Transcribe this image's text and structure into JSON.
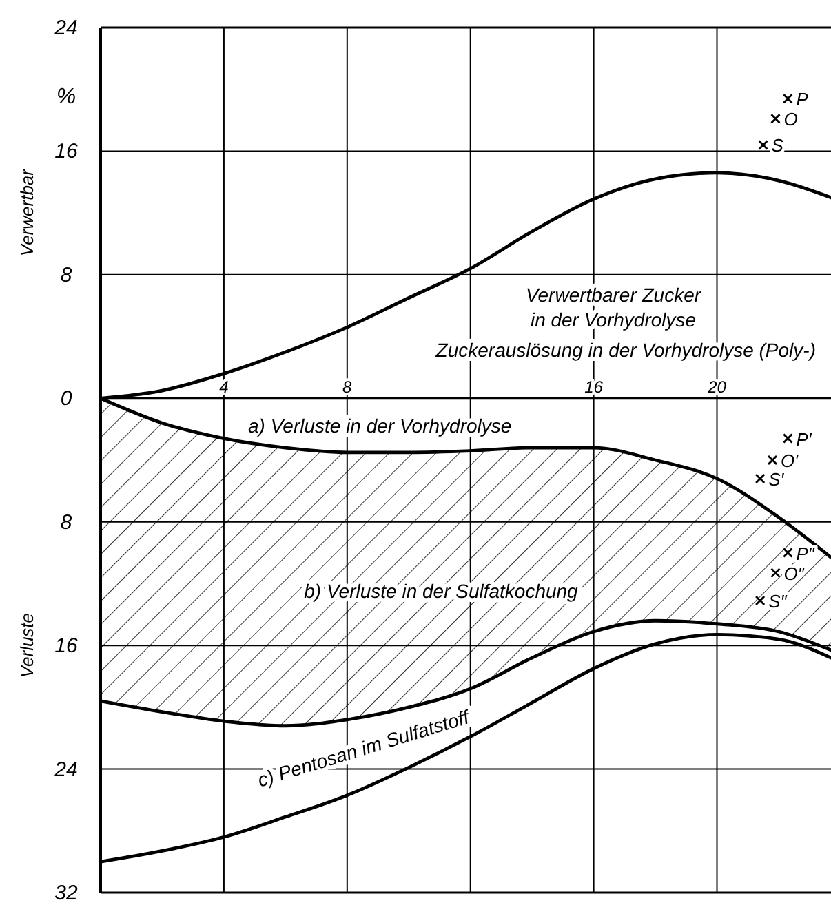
{
  "chart_data": {
    "type": "line",
    "xlabel": "Zuckerauslösung in der Vorhydrolyse (Poly-)",
    "ylabel": "Verwertbar",
    "annotations": [
      "Verluste",
      "%"
    ],
    "x": [
      0,
      2,
      4,
      6,
      8,
      10,
      12,
      14,
      16,
      18,
      20,
      22,
      23.7
    ],
    "xlim": [
      0,
      23.7
    ],
    "xticks": [
      4,
      8,
      {
        "value": 12,
        "label": null
      },
      16,
      20
    ],
    "ylim": [
      -32,
      24
    ],
    "yticks": [
      24,
      16,
      8,
      0,
      {
        "value": -8,
        "label": "8"
      },
      {
        "value": -16,
        "label": "16"
      },
      {
        "value": -24,
        "label": "24"
      },
      {
        "value": -32,
        "label": "32"
      }
    ],
    "grid": true,
    "legend": false,
    "line_style": "solid",
    "series": [
      {
        "name": "Verwertbarer Zucker in der Vorhydrolyse",
        "color": "#000000",
        "values": [
          0,
          0.5,
          1.6,
          3.0,
          4.6,
          6.5,
          8.4,
          10.8,
          12.9,
          14.2,
          14.6,
          14.1,
          13.0
        ]
      },
      {
        "name": "a) Verluste in der Vorhydrolyse",
        "color": "#000000",
        "values": [
          0,
          -1.6,
          -2.6,
          -3.2,
          -3.5,
          -3.5,
          -3.4,
          -3.2,
          -3.2,
          -4.0,
          -5.2,
          -7.7,
          -10.3
        ]
      },
      {
        "name": "b) Verluste in der Sulfatkochung",
        "color": "#000000",
        "values": [
          -19.6,
          -20.3,
          -20.9,
          -21.2,
          -20.8,
          -20.0,
          -18.8,
          -16.8,
          -15.1,
          -14.4,
          -14.6,
          -15.1,
          -16.3
        ],
        "lower": [
          -19.6,
          -20.3,
          -20.9,
          -21.2,
          -20.8,
          -20.0,
          -18.8,
          -16.8,
          -15.1,
          -14.4,
          -14.6,
          -15.1,
          -16.3
        ],
        "upper": [
          0,
          -1.6,
          -2.6,
          -3.2,
          -3.5,
          -3.5,
          -3.4,
          -3.2,
          -3.2,
          -4.0,
          -5.2,
          -7.7,
          -10.3
        ]
      },
      {
        "name": "c) Pentosan im Sulfatstoff",
        "color": "#000000",
        "values": [
          -30.0,
          -29.3,
          -28.4,
          -27.1,
          -25.7,
          -23.9,
          -21.9,
          -19.7,
          -17.5,
          -15.9,
          -15.3,
          -15.6,
          -16.8
        ]
      },
      {
        "type": "scatter",
        "name": "P",
        "color": "#000000",
        "marker": "cross",
        "x": [
          22.3
        ],
        "values": [
          19.4
        ]
      },
      {
        "type": "scatter",
        "name": "O",
        "color": "#000000",
        "marker": "cross",
        "x": [
          21.9
        ],
        "values": [
          18.1
        ]
      },
      {
        "type": "scatter",
        "name": "S",
        "color": "#000000",
        "marker": "cross",
        "x": [
          21.5
        ],
        "values": [
          16.4
        ]
      },
      {
        "type": "scatter",
        "name": "P′",
        "color": "#000000",
        "marker": "cross",
        "x": [
          22.3
        ],
        "values": [
          -2.6
        ]
      },
      {
        "type": "scatter",
        "name": "O′",
        "color": "#000000",
        "marker": "cross",
        "x": [
          21.8
        ],
        "values": [
          -4.0
        ]
      },
      {
        "type": "scatter",
        "name": "S′",
        "color": "#000000",
        "marker": "cross",
        "x": [
          21.4
        ],
        "values": [
          -5.2
        ]
      },
      {
        "type": "scatter",
        "name": "P″",
        "color": "#000000",
        "marker": "cross",
        "x": [
          22.3
        ],
        "values": [
          -10.0
        ]
      },
      {
        "type": "scatter",
        "name": "O″",
        "color": "#000000",
        "marker": "cross",
        "x": [
          21.9
        ],
        "values": [
          -11.3
        ]
      },
      {
        "type": "scatter",
        "name": "S″",
        "color": "#000000",
        "marker": "cross",
        "x": [
          21.4
        ],
        "values": [
          -13.1
        ]
      }
    ]
  }
}
